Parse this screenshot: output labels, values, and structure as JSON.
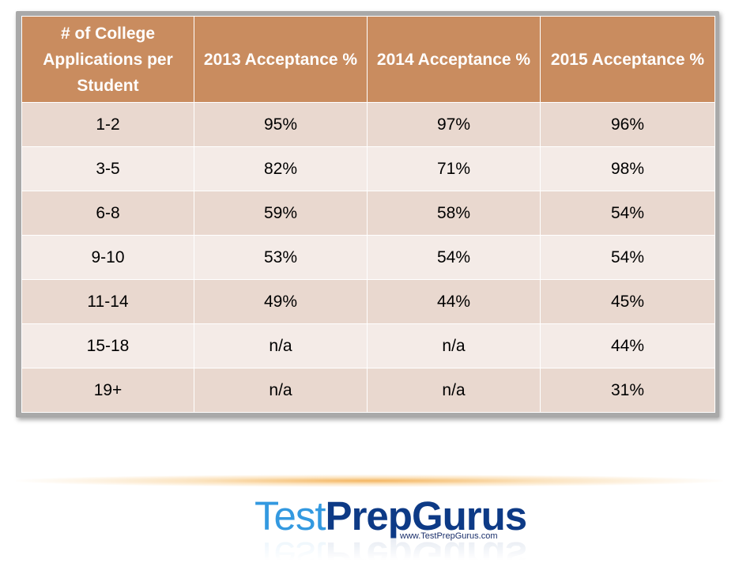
{
  "chart_data": {
    "type": "table",
    "columns": [
      "# of College Applications per Student",
      "2013 Acceptance %",
      "2014 Acceptance %",
      "2015 Acceptance %"
    ],
    "rows": [
      [
        "1-2",
        "95%",
        "97%",
        "96%"
      ],
      [
        "3-5",
        "82%",
        "71%",
        "98%"
      ],
      [
        "6-8",
        "59%",
        "58%",
        "54%"
      ],
      [
        "9-10",
        "53%",
        "54%",
        "54%"
      ],
      [
        "11-14",
        "49%",
        "44%",
        "45%"
      ],
      [
        "15-18",
        "n/a",
        "n/a",
        "44%"
      ],
      [
        "19+",
        "n/a",
        "n/a",
        "31%"
      ]
    ],
    "series": [
      {
        "name": "2013 Acceptance %",
        "values": [
          95,
          82,
          59,
          53,
          49,
          null,
          null
        ]
      },
      {
        "name": "2014 Acceptance %",
        "values": [
          97,
          71,
          58,
          54,
          44,
          null,
          null
        ]
      },
      {
        "name": "2015 Acceptance %",
        "values": [
          96,
          98,
          54,
          54,
          45,
          44,
          31
        ]
      }
    ],
    "categories": [
      "1-2",
      "3-5",
      "6-8",
      "9-10",
      "11-14",
      "15-18",
      "19+"
    ],
    "header_color": "#c98c5f",
    "row_color_odd": "#e9d8cf",
    "row_color_even": "#f4ebe7"
  },
  "logo": {
    "word_test": "Test",
    "word_prep": "Prep",
    "word_gurus": "Gurus",
    "url": "www.TestPrepGurus.com",
    "color_light": "#3399e0",
    "color_dark": "#0d3a86"
  }
}
